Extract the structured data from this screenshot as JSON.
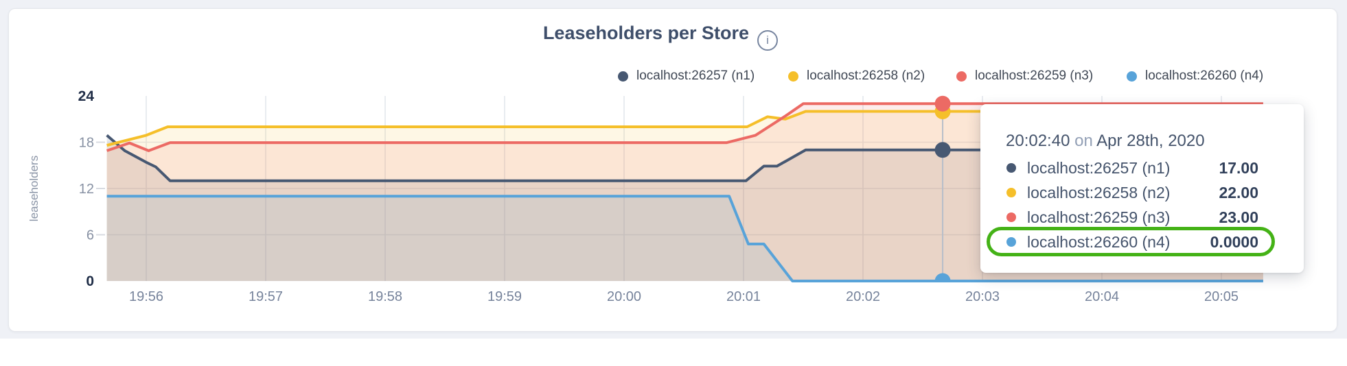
{
  "header": {
    "title": "Leaseholders per Store",
    "info_glyph": "i"
  },
  "legend": {
    "items": [
      {
        "label": "localhost:26257 (n1)",
        "color": "#475872"
      },
      {
        "label": "localhost:26258 (n2)",
        "color": "#f5bf2a"
      },
      {
        "label": "localhost:26259 (n3)",
        "color": "#ec6a64"
      },
      {
        "label": "localhost:26260 (n4)",
        "color": "#58a3d9"
      }
    ]
  },
  "tooltip": {
    "time": "20:02:40",
    "conjunction": "on",
    "date": "Apr 28th, 2020",
    "rows": [
      {
        "name": "localhost:26257 (n1)",
        "value": "17.00"
      },
      {
        "name": "localhost:26258 (n2)",
        "value": "22.00"
      },
      {
        "name": "localhost:26259 (n3)",
        "value": "23.00"
      },
      {
        "name": "localhost:26260 (n4)",
        "value": "0.0000"
      }
    ],
    "highlighted_row_index": 3
  },
  "annotation": {
    "color": "#44b216"
  },
  "chart_data": {
    "type": "area",
    "title": "Leaseholders per Store",
    "xlabel": "",
    "ylabel": "leaseholders",
    "ylim": [
      0,
      24
    ],
    "y_ticks": [
      0,
      6,
      12,
      18,
      24
    ],
    "y_gridlines": [
      6,
      12,
      18
    ],
    "x_ticks": [
      "19:56",
      "19:57",
      "19:58",
      "19:59",
      "20:00",
      "20:01",
      "20:02",
      "20:03",
      "20:04",
      "20:05"
    ],
    "x_unit": "minutes after 19:55",
    "xlim": [
      0.67,
      10.35
    ],
    "grid": true,
    "legend_position": "top",
    "series": [
      {
        "name": "localhost:26257 (n1)",
        "color": "#475872",
        "fill_opacity": 0.13,
        "points": [
          [
            0.67,
            18.9
          ],
          [
            0.82,
            16.9
          ],
          [
            1.0,
            15.4
          ],
          [
            1.08,
            14.8
          ],
          [
            1.2,
            13
          ],
          [
            6.02,
            13
          ],
          [
            6.17,
            14.9
          ],
          [
            6.28,
            14.9
          ],
          [
            6.52,
            17
          ],
          [
            10.35,
            17
          ]
        ]
      },
      {
        "name": "localhost:26258 (n2)",
        "color": "#f5bf2a",
        "fill_opacity": 0.12,
        "points": [
          [
            0.67,
            17.6
          ],
          [
            1.0,
            18.9
          ],
          [
            1.18,
            20
          ],
          [
            6.03,
            20
          ],
          [
            6.2,
            21.3
          ],
          [
            6.35,
            21.0
          ],
          [
            6.52,
            22
          ],
          [
            10.35,
            22
          ]
        ]
      },
      {
        "name": "localhost:26259 (n3)",
        "color": "#ec6a64",
        "fill_opacity": 0.12,
        "points": [
          [
            0.67,
            16.9
          ],
          [
            0.86,
            17.9
          ],
          [
            1.02,
            16.9
          ],
          [
            1.2,
            17.95
          ],
          [
            5.86,
            17.95
          ],
          [
            6.1,
            18.9
          ],
          [
            6.35,
            21.4
          ],
          [
            6.5,
            23
          ],
          [
            10.35,
            23
          ]
        ]
      },
      {
        "name": "localhost:26260 (n4)",
        "color": "#58a3d9",
        "fill_opacity": 0.12,
        "points": [
          [
            0.67,
            11
          ],
          [
            5.88,
            11
          ],
          [
            6.04,
            4.8
          ],
          [
            6.17,
            4.8
          ],
          [
            6.41,
            0
          ],
          [
            10.35,
            0
          ]
        ]
      }
    ],
    "crosshair": {
      "t": 7.667,
      "time": "20:02:40",
      "date": "Apr 28th, 2020",
      "values": [
        17,
        22,
        23,
        0
      ]
    }
  }
}
